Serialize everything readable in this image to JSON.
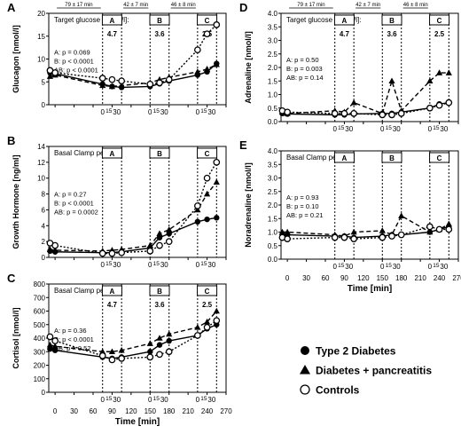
{
  "legend": [
    {
      "label": "Type 2 Diabetes",
      "marker": "filled-circle",
      "line": "solid"
    },
    {
      "label": "Diabetes + pancreatitis",
      "marker": "filled-triangle",
      "line": "solid"
    },
    {
      "label": "Controls",
      "marker": "open-circle",
      "line": "dotted"
    }
  ],
  "chart_data": [
    {
      "id": "A",
      "type": "line",
      "ylabel": "Glucagon [nmol/l]",
      "ylim": [
        0,
        20
      ],
      "yticks": [
        0,
        5,
        10,
        15,
        20
      ],
      "xlim": [
        -10,
        270
      ],
      "xticks": [
        0,
        30,
        60,
        90,
        120,
        150,
        180,
        210,
        240,
        270
      ],
      "show_xtick_labels": false,
      "timing_labels": [
        "79 ± 17 min",
        "42 ± 7 min",
        "46 ± 8 min"
      ],
      "clamp_header": "Target glucose [mmol/l]:",
      "clamp_periods": [
        {
          "label": "A",
          "value": "4.7"
        },
        {
          "label": "B",
          "value": "3.6"
        },
        {
          "label": "C",
          "value": "2.5"
        }
      ],
      "stats": [
        "A: p = 0.069",
        "B: p < 0.0001",
        "AB: p < 0.0001"
      ],
      "series": [
        {
          "name": "Type 2 Diabetes",
          "x": [
            -8,
            0,
            75,
            90,
            105,
            150,
            165,
            180,
            225,
            240,
            255
          ],
          "y": [
            7,
            6.8,
            4.5,
            4.0,
            3.8,
            4.0,
            4.6,
            5.2,
            6.5,
            7.2,
            9.0
          ]
        },
        {
          "name": "Diabetes + pancreatitis",
          "x": [
            -8,
            0,
            75,
            90,
            105,
            150,
            165,
            180,
            225,
            240,
            255
          ],
          "y": [
            6.2,
            6.5,
            4.2,
            4.0,
            4.2,
            4.8,
            5.5,
            6.0,
            7.2,
            7.8,
            8.8
          ]
        },
        {
          "name": "Controls",
          "x": [
            -8,
            0,
            75,
            90,
            105,
            150,
            165,
            180,
            225,
            240,
            255
          ],
          "y": [
            7.5,
            7.0,
            5.8,
            5.5,
            5.2,
            4.5,
            4.8,
            5.5,
            12.0,
            15.5,
            17.5
          ]
        }
      ]
    },
    {
      "id": "B",
      "type": "line",
      "ylabel": "Growth Hormone [ng/ml]",
      "ylim": [
        0,
        14
      ],
      "yticks": [
        0,
        2,
        4,
        6,
        8,
        10,
        12,
        14
      ],
      "xlim": [
        -10,
        270
      ],
      "xticks": [
        0,
        30,
        60,
        90,
        120,
        150,
        180,
        210,
        240,
        270
      ],
      "show_xtick_labels": false,
      "clamp_header": "Basal   Clamp period:",
      "clamp_periods": [
        {
          "label": "A",
          "value": ""
        },
        {
          "label": "B",
          "value": ""
        },
        {
          "label": "C",
          "value": ""
        }
      ],
      "stats": [
        "A: p = 0.27",
        "B: p < 0.0001",
        "AB: p = 0.0002"
      ],
      "series": [
        {
          "name": "Type 2 Diabetes",
          "x": [
            -8,
            0,
            75,
            90,
            105,
            150,
            165,
            180,
            225,
            240,
            255
          ],
          "y": [
            0.8,
            0.7,
            0.6,
            0.6,
            0.7,
            1.2,
            2.5,
            3.0,
            4.5,
            4.8,
            5.0
          ]
        },
        {
          "name": "Diabetes + pancreatitis",
          "x": [
            -8,
            0,
            75,
            90,
            105,
            150,
            165,
            180,
            225,
            240,
            255
          ],
          "y": [
            1.0,
            0.9,
            0.8,
            0.9,
            1.0,
            1.5,
            3.0,
            3.5,
            6.0,
            8.0,
            9.5
          ]
        },
        {
          "name": "Controls",
          "x": [
            -8,
            0,
            75,
            90,
            105,
            150,
            165,
            180,
            225,
            240,
            255
          ],
          "y": [
            1.8,
            1.5,
            0.5,
            0.5,
            0.6,
            0.8,
            1.5,
            2.0,
            6.5,
            10.0,
            12.0
          ]
        }
      ]
    },
    {
      "id": "C",
      "type": "line",
      "ylabel": "Cortisol [nmol/l]",
      "ylim": [
        0,
        800
      ],
      "yticks": [
        0,
        100,
        200,
        300,
        400,
        500,
        600,
        700,
        800
      ],
      "xlim": [
        -10,
        270
      ],
      "xticks": [
        0,
        30,
        60,
        90,
        120,
        150,
        180,
        210,
        240,
        270
      ],
      "show_xtick_labels": true,
      "xlabel": "Time [min]",
      "clamp_header": "Basal   Clamp period:",
      "clamp_periods": [
        {
          "label": "A",
          "value": "4.7"
        },
        {
          "label": "B",
          "value": "3.6"
        },
        {
          "label": "C",
          "value": "2.5"
        }
      ],
      "stats": [
        "A: p = 0.36",
        "B: p < 0.0001",
        "AB: p = 0.52"
      ],
      "series": [
        {
          "name": "Type 2 Diabetes",
          "x": [
            -8,
            0,
            75,
            90,
            105,
            150,
            165,
            180,
            225,
            240,
            255
          ],
          "y": [
            320,
            310,
            260,
            250,
            260,
            300,
            350,
            380,
            420,
            470,
            500
          ]
        },
        {
          "name": "Diabetes + pancreatitis",
          "x": [
            -8,
            0,
            75,
            90,
            105,
            150,
            165,
            180,
            225,
            240,
            255
          ],
          "y": [
            350,
            340,
            300,
            300,
            310,
            360,
            400,
            430,
            480,
            520,
            600
          ]
        },
        {
          "name": "Controls",
          "x": [
            -8,
            0,
            75,
            90,
            105,
            150,
            165,
            180,
            225,
            240,
            255
          ],
          "y": [
            410,
            380,
            270,
            240,
            250,
            260,
            280,
            300,
            420,
            480,
            530
          ]
        }
      ]
    },
    {
      "id": "D",
      "type": "line",
      "ylabel": "Adrenaline [nmol/l]",
      "ylim": [
        0,
        4
      ],
      "yticks": [
        0,
        0.5,
        1,
        1.5,
        2,
        2.5,
        3,
        3.5,
        4
      ],
      "xlim": [
        -10,
        270
      ],
      "xticks": [
        0,
        30,
        60,
        90,
        120,
        150,
        180,
        210,
        240,
        270
      ],
      "show_xtick_labels": false,
      "timing_labels": [
        "79 ± 17 min",
        "42 ± 7 min",
        "46 ± 8 min"
      ],
      "clamp_header": "Target glucose [mmol/l]:",
      "clamp_periods": [
        {
          "label": "A",
          "value": "4.7"
        },
        {
          "label": "B",
          "value": "3.6"
        },
        {
          "label": "C",
          "value": "2.5"
        }
      ],
      "stats": [
        "A: p = 0.50",
        "B: p = 0.003",
        "AB: p = 0.14"
      ],
      "series": [
        {
          "name": "Type 2 Diabetes",
          "x": [
            -8,
            0,
            75,
            90,
            105,
            150,
            165,
            180,
            225,
            240,
            255
          ],
          "y": [
            0.3,
            0.28,
            0.25,
            0.25,
            0.28,
            0.3,
            0.3,
            0.35,
            0.5,
            0.65,
            0.7
          ]
        },
        {
          "name": "Diabetes + pancreatitis",
          "x": [
            -8,
            0,
            75,
            90,
            105,
            150,
            165,
            180,
            225,
            240,
            255
          ],
          "y": [
            0.35,
            0.3,
            0.4,
            0.35,
            0.7,
            0.3,
            1.5,
            0.4,
            1.5,
            1.8,
            1.8
          ]
        },
        {
          "name": "Controls",
          "x": [
            -8,
            0,
            75,
            90,
            105,
            150,
            165,
            180,
            225,
            240,
            255
          ],
          "y": [
            0.4,
            0.35,
            0.3,
            0.3,
            0.3,
            0.25,
            0.25,
            0.3,
            0.5,
            0.6,
            0.7
          ]
        }
      ]
    },
    {
      "id": "E",
      "type": "line",
      "ylabel": "Noradrenaline [nmol/l]",
      "ylim": [
        0,
        4
      ],
      "yticks": [
        0,
        0.5,
        1,
        1.5,
        2,
        2.5,
        3,
        3.5,
        4
      ],
      "xlim": [
        -10,
        270
      ],
      "xticks": [
        0,
        30,
        60,
        90,
        120,
        150,
        180,
        210,
        240,
        270
      ],
      "show_xtick_labels": true,
      "xlabel": "Time [min]",
      "clamp_header": "Basal   Clamp period:",
      "clamp_periods": [
        {
          "label": "A",
          "value": ""
        },
        {
          "label": "B",
          "value": ""
        },
        {
          "label": "C",
          "value": ""
        }
      ],
      "stats": [
        "A: p = 0.93",
        "B: p = 0.10",
        "AB: p = 0.21"
      ],
      "series": [
        {
          "name": "Type 2 Diabetes",
          "x": [
            -8,
            0,
            75,
            90,
            105,
            150,
            165,
            180,
            225,
            240,
            255
          ],
          "y": [
            0.9,
            0.9,
            0.85,
            0.85,
            0.8,
            0.85,
            0.9,
            0.9,
            1.0,
            1.1,
            1.2
          ]
        },
        {
          "name": "Diabetes + pancreatitis",
          "x": [
            -8,
            0,
            75,
            90,
            105,
            150,
            165,
            180,
            225,
            240,
            255
          ],
          "y": [
            1.0,
            1.0,
            0.9,
            0.85,
            1.0,
            1.05,
            0.9,
            1.6,
            1.0,
            1.1,
            1.3
          ]
        },
        {
          "name": "Controls",
          "x": [
            -8,
            0,
            75,
            90,
            105,
            150,
            165,
            180,
            225,
            240,
            255
          ],
          "y": [
            0.8,
            0.75,
            0.8,
            0.8,
            0.75,
            0.8,
            0.85,
            0.9,
            1.2,
            1.1,
            1.1
          ]
        }
      ]
    }
  ]
}
